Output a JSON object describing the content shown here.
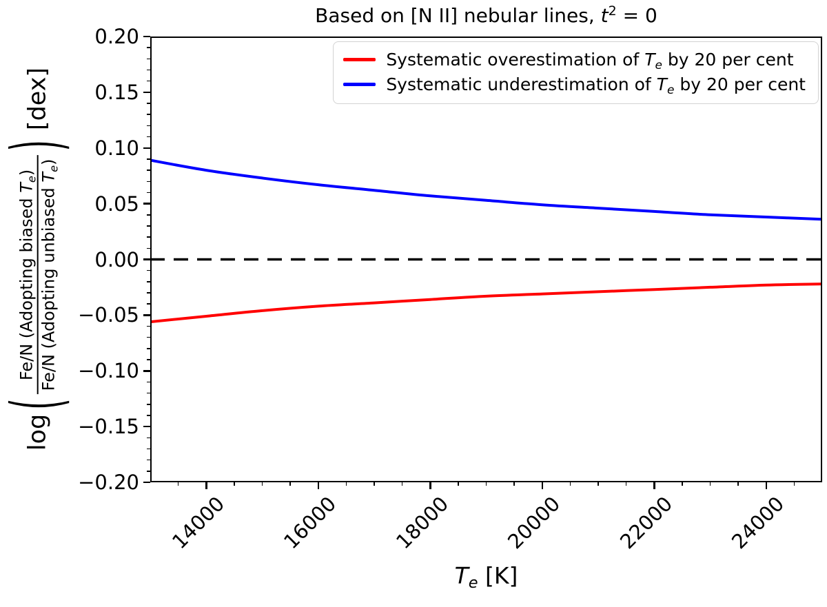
{
  "title": {
    "prefix": "Based on [N II] nebular lines, ",
    "t_symbol": "t",
    "t_exponent": "2",
    "suffix": " = 0"
  },
  "axes": {
    "x": {
      "label": {
        "symbol": "T",
        "subscript": "e",
        "unit": " [K]"
      },
      "lim": [
        13000,
        25000
      ],
      "minor_step": 500,
      "major_ticks": [
        {
          "value": 14000,
          "label": "14000"
        },
        {
          "value": 16000,
          "label": "16000"
        },
        {
          "value": 18000,
          "label": "18000"
        },
        {
          "value": 20000,
          "label": "20000"
        },
        {
          "value": 22000,
          "label": "22000"
        },
        {
          "value": 24000,
          "label": "24000"
        }
      ]
    },
    "y": {
      "label": {
        "log": "log",
        "open_paren": "(",
        "numerator": {
          "prefix": "Fe/N (Adopting biased ",
          "symbol": "T",
          "subscript": "e",
          "suffix": ")"
        },
        "denominator": {
          "prefix": "Fe/N (Adopting unbiased ",
          "symbol": "T",
          "subscript": "e",
          "suffix": ")"
        },
        "close_paren": ")",
        "unit": "[dex]"
      },
      "lim": [
        -0.2,
        0.2
      ],
      "minor_step": 0.01,
      "major_ticks": [
        {
          "value": 0.2,
          "label": "0.20"
        },
        {
          "value": 0.15,
          "label": "0.15"
        },
        {
          "value": 0.1,
          "label": "0.10"
        },
        {
          "value": 0.05,
          "label": "0.05"
        },
        {
          "value": 0.0,
          "label": "0.00"
        },
        {
          "value": -0.05,
          "label": "−0.05"
        },
        {
          "value": -0.1,
          "label": "−0.10"
        },
        {
          "value": -0.15,
          "label": "−0.15"
        },
        {
          "value": -0.2,
          "label": "−0.20"
        }
      ]
    }
  },
  "legend": {
    "entries": [
      {
        "prefix": "Systematic overestimation of ",
        "symbol": "T",
        "subscript": "e",
        "suffix": " by 20 per cent",
        "color": "#ff0000"
      },
      {
        "prefix": "Systematic underestimation of ",
        "symbol": "T",
        "subscript": "e",
        "suffix": " by 20  per cent",
        "color": "#0000ff"
      }
    ]
  },
  "chart_data": {
    "type": "line",
    "title": "Based on [N II] nebular lines, t² = 0",
    "xlabel": "Tₑ [K]",
    "ylabel": "log( Fe/N (Adopting biased Tₑ) / Fe/N (Adopting unbiased Tₑ) ) [dex]",
    "xlim": [
      13000,
      25000
    ],
    "ylim": [
      -0.2,
      0.2
    ],
    "grid": false,
    "legend_position": "upper right",
    "x": [
      13000,
      14000,
      15000,
      16000,
      17000,
      18000,
      19000,
      20000,
      21000,
      22000,
      23000,
      24000,
      25000
    ],
    "series": [
      {
        "name": "Systematic overestimation of Tₑ by 20 per cent",
        "color": "#ff0000",
        "values": [
          -0.056,
          -0.051,
          -0.046,
          -0.042,
          -0.039,
          -0.036,
          -0.033,
          -0.031,
          -0.029,
          -0.027,
          -0.025,
          -0.023,
          -0.022
        ]
      },
      {
        "name": "Systematic underestimation of Tₑ by 20  per cent",
        "color": "#0000ff",
        "values": [
          0.089,
          0.08,
          0.073,
          0.067,
          0.062,
          0.057,
          0.053,
          0.049,
          0.046,
          0.043,
          0.04,
          0.038,
          0.036
        ]
      }
    ],
    "reference_line": {
      "y": 0.0,
      "color": "#000000",
      "style": "dashed"
    }
  }
}
